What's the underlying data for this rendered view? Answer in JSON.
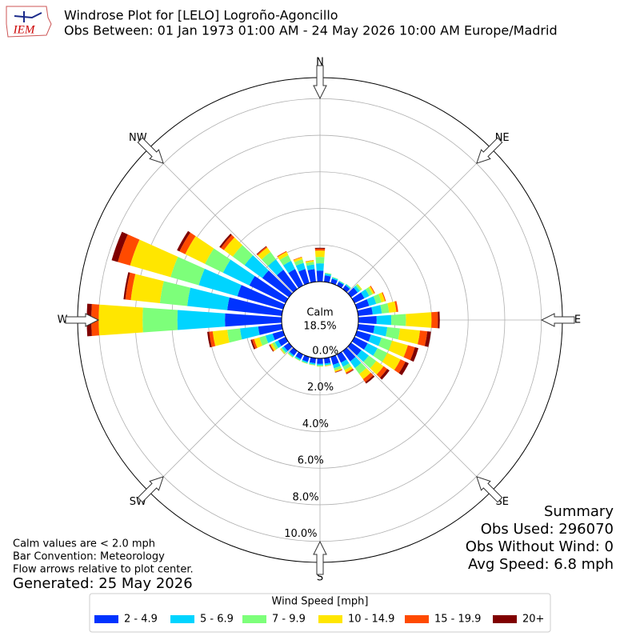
{
  "chart_data": {
    "type": "windrose",
    "title": "Windrose Plot for [LELO] Logroño-Agoncillo",
    "subtitle": "Obs Between: 01 Jan 1973 01:00 AM - 24 May 2026 10:00 AM Europe/Madrid",
    "logo_text": "IEM",
    "x": [
      0,
      10,
      20,
      30,
      40,
      50,
      60,
      70,
      80,
      90,
      100,
      110,
      120,
      130,
      140,
      150,
      160,
      170,
      180,
      190,
      200,
      210,
      220,
      230,
      240,
      250,
      260,
      270,
      280,
      290,
      300,
      310,
      320,
      330,
      340,
      350
    ],
    "direction_labels": [
      "N",
      "NE",
      "E",
      "SE",
      "S",
      "SW",
      "W",
      "NW"
    ],
    "rlim": [
      0,
      11.15
    ],
    "rticks": [
      {
        "value": 0,
        "label": "0.0%"
      },
      {
        "value": 2,
        "label": "2.0%"
      },
      {
        "value": 4,
        "label": "4.0%"
      },
      {
        "value": 6,
        "label": "6.0%"
      },
      {
        "value": 8,
        "label": "8.0%"
      },
      {
        "value": 10,
        "label": "10.0%"
      }
    ],
    "calm_label": "Calm",
    "calm_value_label": "18.5%",
    "legend_title": "Wind Speed [mph]",
    "series": [
      {
        "name": "2 - 4.9",
        "color": "#0033ff",
        "values": [
          0.6,
          0.35,
          0.25,
          0.22,
          0.25,
          0.45,
          0.6,
          0.7,
          0.8,
          1.0,
          0.9,
          0.8,
          0.8,
          0.7,
          0.7,
          0.5,
          0.45,
          0.3,
          0.3,
          0.28,
          0.28,
          0.28,
          0.3,
          0.35,
          0.45,
          0.6,
          1.3,
          3.1,
          3.0,
          2.6,
          2.2,
          1.8,
          1.3,
          1.0,
          0.8,
          0.7
        ]
      },
      {
        "name": "5 - 6.9",
        "color": "#00d4ff",
        "values": [
          0.4,
          0.1,
          0.07,
          0.05,
          0.07,
          0.15,
          0.3,
          0.4,
          0.5,
          0.8,
          0.7,
          0.6,
          0.6,
          0.5,
          0.45,
          0.25,
          0.2,
          0.08,
          0.08,
          0.07,
          0.07,
          0.07,
          0.08,
          0.12,
          0.2,
          0.4,
          1.0,
          2.6,
          2.2,
          2.2,
          1.6,
          1.2,
          0.7,
          0.5,
          0.35,
          0.25
        ]
      },
      {
        "name": "7 - 9.9",
        "color": "#7dff7a",
        "values": [
          0.35,
          0.05,
          0.03,
          0.03,
          0.03,
          0.1,
          0.2,
          0.3,
          0.4,
          0.8,
          0.7,
          0.6,
          0.6,
          0.5,
          0.4,
          0.2,
          0.12,
          0.04,
          0.05,
          0.04,
          0.04,
          0.04,
          0.05,
          0.08,
          0.15,
          0.35,
          0.7,
          1.9,
          1.5,
          1.6,
          1.1,
          0.8,
          0.5,
          0.35,
          0.2,
          0.15
        ]
      },
      {
        "name": "10 - 14.9",
        "color": "#ffe600",
        "values": [
          0.35,
          0,
          0,
          0,
          0,
          0.05,
          0.1,
          0.2,
          0.4,
          1.4,
          1.1,
          0.9,
          0.8,
          0.5,
          0.35,
          0.15,
          0.08,
          0.02,
          0.02,
          0.01,
          0.01,
          0.01,
          0.02,
          0.04,
          0.12,
          0.3,
          0.8,
          2.4,
          1.6,
          2.3,
          1.2,
          0.6,
          0.3,
          0.2,
          0.12,
          0.08
        ]
      },
      {
        "name": "15 - 19.9",
        "color": "#ff4a00",
        "values": [
          0.1,
          0,
          0,
          0,
          0,
          0,
          0.05,
          0.05,
          0.1,
          0.35,
          0.4,
          0.4,
          0.3,
          0.25,
          0.2,
          0.07,
          0.03,
          0.01,
          0,
          0,
          0,
          0,
          0,
          0.01,
          0.05,
          0.12,
          0.2,
          0.4,
          0.3,
          0.7,
          0.35,
          0.2,
          0.07,
          0.05,
          0.03,
          0.02
        ]
      },
      {
        "name": "20+",
        "color": "#800000",
        "values": [
          0.05,
          0,
          0,
          0,
          0,
          0,
          0,
          0,
          0,
          0.1,
          0.2,
          0.2,
          0.2,
          0.15,
          0.1,
          0.03,
          0.02,
          0,
          0,
          0,
          0,
          0,
          0,
          0,
          0.03,
          0.08,
          0.1,
          0.25,
          0.1,
          0.35,
          0.15,
          0.1,
          0.03,
          0,
          0,
          0
        ]
      }
    ],
    "notes": [
      "Calm values are < 2.0 mph",
      "Bar Convention: Meteorology",
      "Flow arrows relative to plot center."
    ],
    "generated": "Generated: 25 May 2026",
    "summary": [
      "Summary",
      "Obs Used: 296070",
      "Obs Without Wind: 0",
      "Avg Speed: 6.8 mph"
    ]
  }
}
